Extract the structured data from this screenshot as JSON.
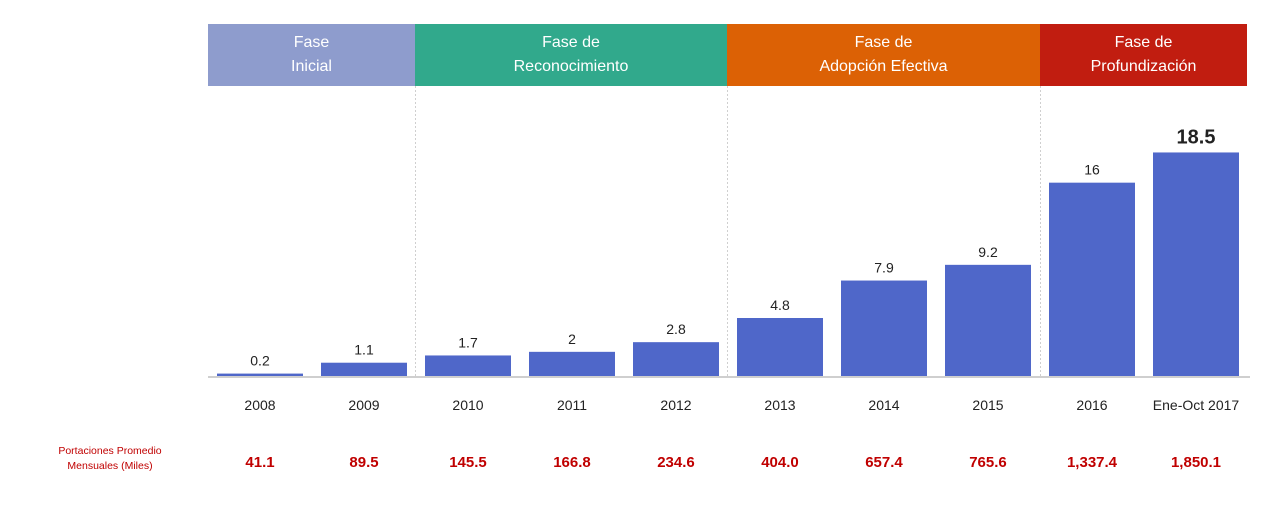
{
  "phases": [
    {
      "line1": "Fase",
      "line2": "Inicial",
      "color": "#8e9ccd"
    },
    {
      "line1": "Fase de",
      "line2": "Reconocimiento",
      "color": "#31a98c"
    },
    {
      "line1": "Fase de",
      "line2": "Adopción Efectiva",
      "color": "#dc6105"
    },
    {
      "line1": "Fase de",
      "line2": "Profundización",
      "color": "#c11d10"
    }
  ],
  "chart_data": {
    "type": "bar",
    "categories": [
      "2008",
      "2009",
      "2010",
      "2011",
      "2012",
      "2013",
      "2014",
      "2015",
      "2016",
      "Ene-Oct 2017"
    ],
    "values": [
      0.2,
      1.1,
      1.7,
      2,
      2.8,
      4.8,
      7.9,
      9.2,
      16,
      18.5
    ],
    "value_labels": [
      "0.2",
      "1.1",
      "1.7",
      "2",
      "2.8",
      "4.8",
      "7.9",
      "9.2",
      "16",
      "18.5"
    ],
    "ylim": [
      0,
      20
    ],
    "bar_color": "#4f67c9",
    "grid": false,
    "secondary_row": {
      "label_line1": "Portaciones Promedio",
      "label_line2": "Mensuales (Miles)",
      "values": [
        "41.1",
        "89.5",
        "145.5",
        "166.8",
        "234.6",
        "404.0",
        "657.4",
        "765.6",
        "1,337.4",
        "1,850.1"
      ],
      "color": "#c00000"
    }
  }
}
